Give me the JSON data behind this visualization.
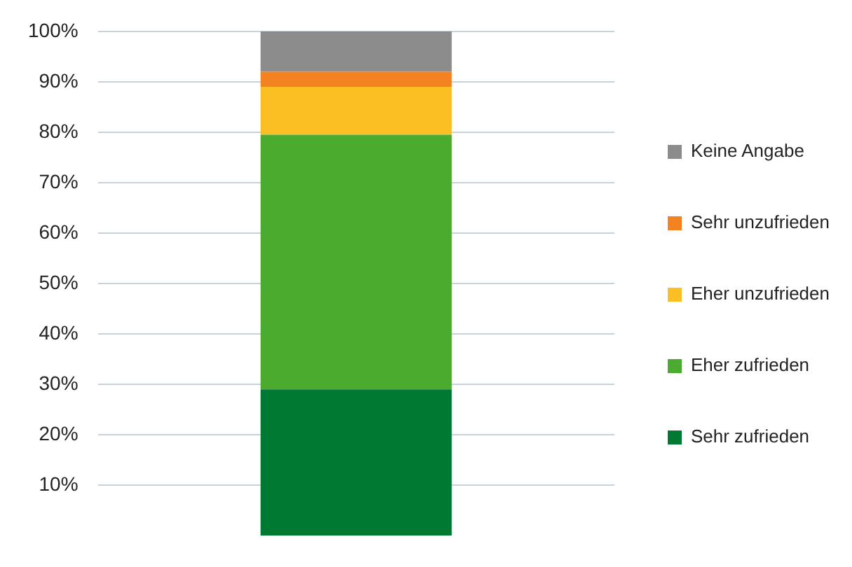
{
  "chart_data": {
    "type": "bar",
    "stacked": true,
    "categories": [
      null
    ],
    "series": [
      {
        "name": "Sehr zufrieden",
        "color": "#007a33",
        "values": [
          29
        ]
      },
      {
        "name": "Eher zufrieden",
        "color": "#4aab2e",
        "values": [
          50.5
        ]
      },
      {
        "name": "Eher unzufrieden",
        "color": "#fbbf24",
        "values": [
          9.5
        ]
      },
      {
        "name": "Sehr unzufrieden",
        "color": "#f58220",
        "values": [
          3
        ]
      },
      {
        "name": "Keine Angabe",
        "color": "#8c8c8c",
        "values": [
          8
        ]
      }
    ],
    "ylim": [
      0,
      100
    ],
    "yticks": [
      {
        "value": 10,
        "label": "10%"
      },
      {
        "value": 20,
        "label": "20%"
      },
      {
        "value": 30,
        "label": "30%"
      },
      {
        "value": 40,
        "label": "40%"
      },
      {
        "value": 50,
        "label": "50%"
      },
      {
        "value": 60,
        "label": "60%"
      },
      {
        "value": 70,
        "label": "70%"
      },
      {
        "value": 80,
        "label": "80%"
      },
      {
        "value": 90,
        "label": "90%"
      },
      {
        "value": 100,
        "label": "100%"
      }
    ],
    "grid": "y",
    "legend": "right"
  }
}
